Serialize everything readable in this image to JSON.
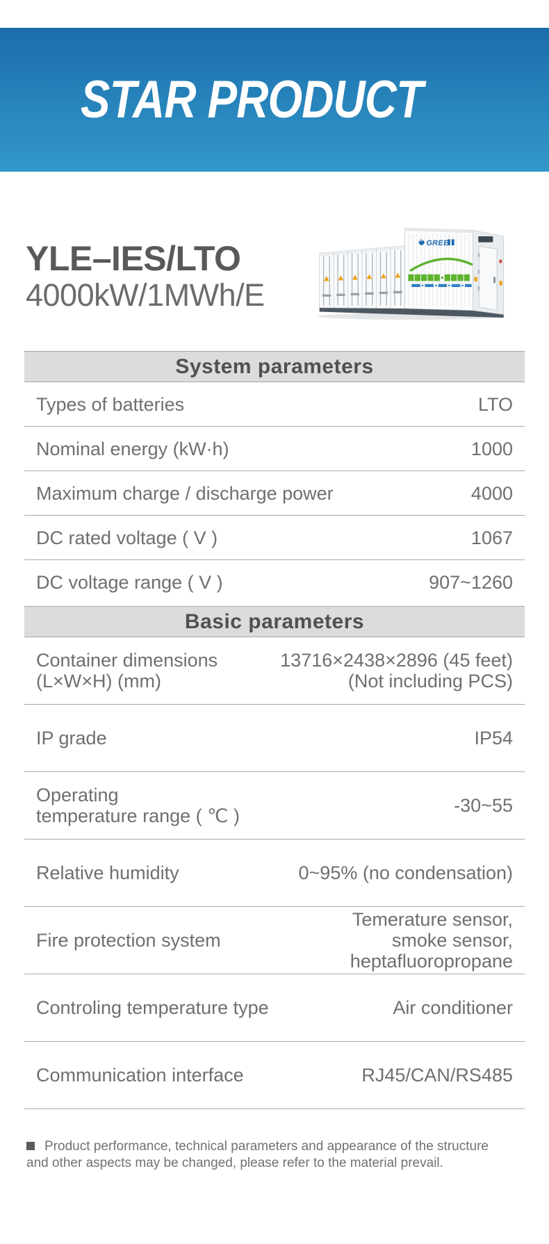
{
  "banner": {
    "title": "STAR PRODUCT",
    "gradient_top": "#1b6dab",
    "gradient_bottom": "#3397ca"
  },
  "product": {
    "model": "YLE–IES/LTO",
    "spec": "4000kW/1MWh/E",
    "brand": "GREE",
    "image": "white-energy-storage-container"
  },
  "sections": [
    {
      "title": "System parameters",
      "rows": [
        {
          "label": [
            "Types of batteries"
          ],
          "value": [
            "LTO"
          ]
        },
        {
          "label": [
            "Nominal energy (kW·h)"
          ],
          "value": [
            "1000"
          ]
        },
        {
          "label": [
            "Maximum charge / discharge power"
          ],
          "value": [
            "4000"
          ]
        },
        {
          "label": [
            "DC rated voltage ( V )"
          ],
          "value": [
            "1067"
          ]
        },
        {
          "label": [
            "DC voltage range ( V )"
          ],
          "value": [
            "907~1260"
          ]
        }
      ]
    },
    {
      "title": "Basic parameters",
      "rows": [
        {
          "label": [
            "Container dimensions",
            "(L×W×H) (mm)"
          ],
          "value": [
            "13716×2438×2896 (45 feet)",
            "(Not including PCS)"
          ]
        },
        {
          "label": [
            "IP grade"
          ],
          "value": [
            "IP54"
          ]
        },
        {
          "label": [
            "Operating",
            "temperature range ( ℃ )"
          ],
          "value": [
            "-30~55"
          ]
        },
        {
          "label": [
            "Relative humidity"
          ],
          "value": [
            "0~95% (no condensation)"
          ]
        },
        {
          "label": [
            "Fire protection system"
          ],
          "value": [
            "Temerature sensor,",
            "smoke sensor,",
            "heptafluoropropane"
          ]
        },
        {
          "label": [
            "Controling temperature type"
          ],
          "value": [
            "Air conditioner"
          ]
        },
        {
          "label": [
            "Communication interface"
          ],
          "value": [
            "RJ45/CAN/RS485"
          ]
        }
      ]
    }
  ],
  "footnote": {
    "lines": [
      "Product performance, technical parameters and appearance of the structure",
      "and other aspects may be changed, please refer to the material prevail."
    ]
  },
  "colors": {
    "section_header_bg": "#dbdcdd",
    "section_header_text": "#4f5052",
    "row_text": "#6e6f72",
    "title_text": "#58595b",
    "banner_text": "#ffffff",
    "brand_blue": "#1e6cb0",
    "eco_green": "#5fb32e",
    "warning_orange": "#eda21b"
  }
}
